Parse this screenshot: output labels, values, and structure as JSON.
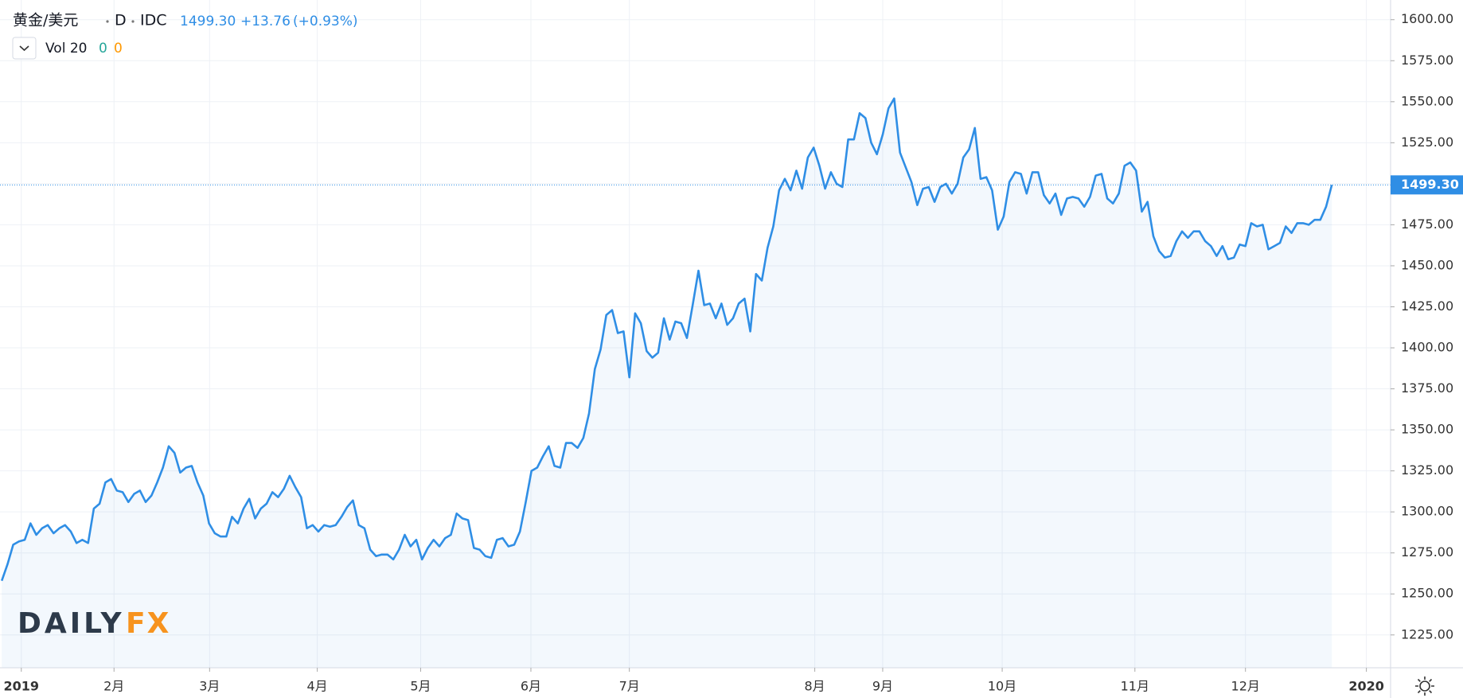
{
  "header": {
    "symbol": "黄金/美元",
    "interval": "D",
    "source": "IDC",
    "price": "1499.30",
    "change": "+13.76",
    "change_pct": "(+0.93%)",
    "indicator": "Vol 20",
    "indicator_values": [
      "0",
      "0"
    ]
  },
  "watermark": {
    "brand": "DAILY",
    "accent": "FX"
  },
  "chart_data": {
    "type": "area",
    "grid": true,
    "series": [
      {
        "name": "黄金/美元",
        "color": "#2f8ee5",
        "values": [
          1258,
          1268,
          1280,
          1282,
          1283,
          1293,
          1286,
          1290,
          1292,
          1287,
          1290,
          1292,
          1288,
          1281,
          1283,
          1281,
          1302,
          1305,
          1318,
          1320,
          1313,
          1312,
          1306,
          1311,
          1313,
          1306,
          1310,
          1318,
          1327,
          1340,
          1336,
          1324,
          1327,
          1328,
          1318,
          1310,
          1293,
          1287,
          1285,
          1285,
          1297,
          1293,
          1302,
          1308,
          1296,
          1302,
          1305,
          1312,
          1309,
          1314,
          1322,
          1315,
          1309,
          1290,
          1292,
          1288,
          1292,
          1291,
          1292,
          1297,
          1303,
          1307,
          1292,
          1290,
          1277,
          1273,
          1274,
          1274,
          1271,
          1277,
          1286,
          1279,
          1283,
          1271,
          1278,
          1283,
          1279,
          1284,
          1286,
          1299,
          1296,
          1295,
          1278,
          1277,
          1273,
          1272,
          1283,
          1284,
          1279,
          1280,
          1288,
          1306,
          1325,
          1327,
          1334,
          1340,
          1328,
          1327,
          1342,
          1342,
          1339,
          1345,
          1360,
          1387,
          1399,
          1420,
          1423,
          1409,
          1410,
          1382,
          1421,
          1415,
          1398,
          1394,
          1397,
          1418,
          1405,
          1416,
          1415,
          1406,
          1426,
          1447,
          1426,
          1427,
          1418,
          1427,
          1414,
          1418,
          1427,
          1430,
          1410,
          1445,
          1441,
          1461,
          1474,
          1496,
          1503,
          1496,
          1508,
          1497,
          1516,
          1522,
          1511,
          1497,
          1507,
          1500,
          1498,
          1527,
          1527,
          1543,
          1540,
          1525,
          1518,
          1530,
          1546,
          1552,
          1519,
          1510,
          1501,
          1487,
          1497,
          1498,
          1489,
          1498,
          1500,
          1494,
          1500,
          1516,
          1521,
          1534,
          1503,
          1504,
          1496,
          1472,
          1480,
          1501,
          1507,
          1506,
          1494,
          1507,
          1507,
          1493,
          1488,
          1494,
          1481,
          1491,
          1492,
          1491,
          1486,
          1492,
          1505,
          1506,
          1491,
          1488,
          1494,
          1511,
          1513,
          1508,
          1483,
          1489,
          1468,
          1459,
          1455,
          1456,
          1465,
          1471,
          1467,
          1471,
          1471,
          1465,
          1462,
          1456,
          1462,
          1454,
          1455,
          1463,
          1462,
          1476,
          1474,
          1475,
          1460,
          1462,
          1464,
          1474,
          1470,
          1476,
          1476,
          1475,
          1478,
          1478,
          1486,
          1499.3
        ],
        "last_label": "1499.30"
      }
    ],
    "xlim": [
      -0.3,
      241.2
    ],
    "xticks": [
      {
        "value": 3.4,
        "label": "2019"
      },
      {
        "value": 19.5,
        "label": "2月"
      },
      {
        "value": 36.1,
        "label": "3月"
      },
      {
        "value": 54.8,
        "label": "4月"
      },
      {
        "value": 72.75,
        "label": "5月"
      },
      {
        "value": 91.9,
        "label": "6月"
      },
      {
        "value": 109,
        "label": "7月"
      },
      {
        "value": 141.2,
        "label": "8月"
      },
      {
        "value": 153,
        "label": "9月"
      },
      {
        "value": 173.75,
        "label": "10月"
      },
      {
        "value": 196.8,
        "label": "11月"
      },
      {
        "value": 216,
        "label": "12月"
      },
      {
        "value": 237,
        "label": "2020"
      }
    ],
    "ylim": [
      1205,
      1612
    ],
    "yticks": [
      {
        "value": 1225,
        "label": "1225.00"
      },
      {
        "value": 1250,
        "label": "1250.00"
      },
      {
        "value": 1275,
        "label": "1275.00"
      },
      {
        "value": 1300,
        "label": "1300.00"
      },
      {
        "value": 1325,
        "label": "1325.00"
      },
      {
        "value": 1350,
        "label": "1350.00"
      },
      {
        "value": 1375,
        "label": "1375.00"
      },
      {
        "value": 1400,
        "label": "1400.00"
      },
      {
        "value": 1425,
        "label": "1425.00"
      },
      {
        "value": 1450,
        "label": "1450.00"
      },
      {
        "value": 1475,
        "label": "1475.00"
      },
      {
        "value": 1500,
        "label": "1500.00"
      },
      {
        "value": 1525,
        "label": "1525.00"
      },
      {
        "value": 1550,
        "label": "1550.00"
      },
      {
        "value": 1575,
        "label": "1575.00"
      },
      {
        "value": 1600,
        "label": "1600.00"
      }
    ]
  }
}
